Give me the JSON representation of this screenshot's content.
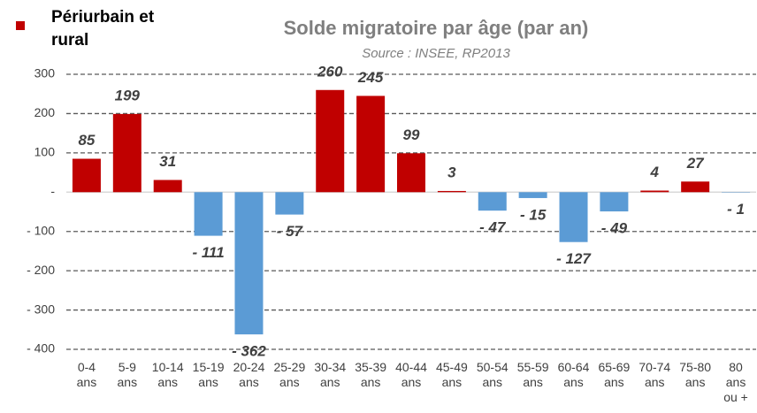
{
  "chart_data": {
    "type": "bar",
    "title": "Solde migratoire par âge (par an)",
    "subtitle": "Source : INSEE, RP2013",
    "categories": [
      "0-4 ans",
      "5-9 ans",
      "10-14 ans",
      "15-19 ans",
      "20-24 ans",
      "25-29 ans",
      "30-34 ans",
      "35-39 ans",
      "40-44 ans",
      "45-49 ans",
      "50-54 ans",
      "55-59 ans",
      "60-64 ans",
      "65-69 ans",
      "70-74 ans",
      "75-80 ans",
      "80 ans ou +"
    ],
    "series": [
      {
        "name": "Périurbain et rural",
        "color": "#c00000",
        "values": [
          85,
          199,
          31,
          -111,
          -362,
          -57,
          260,
          245,
          99,
          3,
          -47,
          -15,
          -127,
          -49,
          4,
          27,
          -1
        ],
        "value_labels": [
          "85",
          "199",
          "31",
          "- 111",
          "- 362",
          "- 57",
          "260",
          "245",
          "99",
          "3",
          "- 47",
          "- 15",
          "- 127",
          "- 49",
          "4",
          "27",
          "- 1"
        ]
      }
    ],
    "negative_color": "#5b9bd5",
    "ylim": [
      -400,
      300
    ],
    "yticks": [
      300,
      200,
      100,
      {
        "value": 0,
        "label": "-"
      },
      {
        "value": -100,
        "label": "- 100"
      },
      {
        "value": -200,
        "label": "- 200"
      },
      {
        "value": -300,
        "label": "- 300"
      },
      {
        "value": -400,
        "label": "- 400"
      }
    ],
    "grid": true,
    "legend": "top-left"
  }
}
